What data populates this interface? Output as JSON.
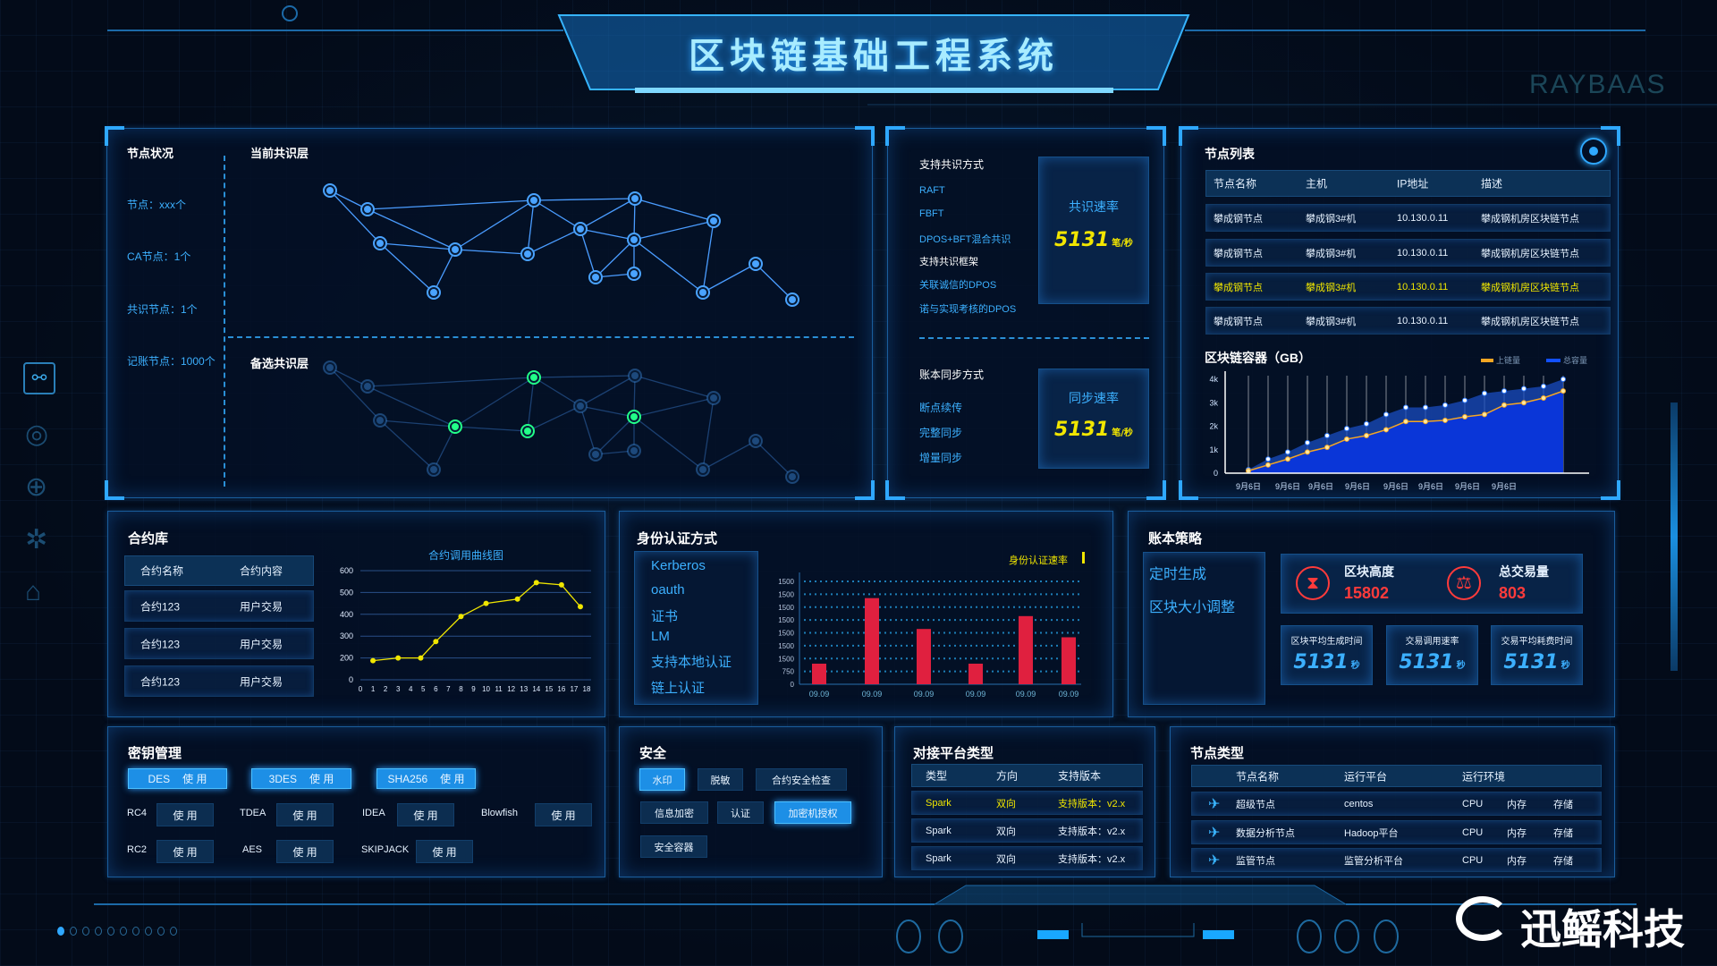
{
  "header": {
    "title": "区块链基础工程系统",
    "watermark_brand": "RAYBAAS",
    "weibo_watermark": "迅鳐科技"
  },
  "node_status": {
    "title": "节点状况",
    "stats": [
      "节点：xxx个",
      "CA节点：1个",
      "共识节点：1个",
      "记账节点：1000个"
    ],
    "current_layer": "当前共识层",
    "candidate_layer": "备选共识层"
  },
  "consensus": {
    "support_title": "支持共识方式",
    "items": [
      {
        "t": "RAFT",
        "c": "blue"
      },
      {
        "t": "FBFT",
        "c": "blue"
      },
      {
        "t": "DPOS+BFT混合共识",
        "c": "blue"
      },
      {
        "t": "支持共识框架",
        "c": "white"
      },
      {
        "t": "关联诚信的DPOS",
        "c": "blue"
      },
      {
        "t": "诺与实现考核的DPOS",
        "c": "blue"
      }
    ],
    "rate_label": "共识速率",
    "rate_value": "5131",
    "rate_unit": "笔/秒",
    "sync_title": "账本同步方式",
    "sync_items": [
      "断点续传",
      "完整同步",
      "增量同步"
    ],
    "sync_rate_label": "同步速率",
    "sync_rate_value": "5131",
    "sync_rate_unit": "笔/秒"
  },
  "node_list": {
    "title": "节点列表",
    "columns": [
      "节点名称",
      "主机",
      "IP地址",
      "描述"
    ],
    "rows": [
      [
        "攀成钢节点",
        "攀成钢3#机",
        "10.130.0.11",
        "攀成钢机房区块链节点"
      ],
      [
        "攀成钢节点",
        "攀成钢3#机",
        "10.130.0.11",
        "攀成钢机房区块链节点"
      ],
      [
        "攀成钢节点",
        "攀成钢3#机",
        "10.130.0.11",
        "攀成钢机房区块链节点"
      ],
      [
        "攀成钢节点",
        "攀成钢3#机",
        "10.130.0.11",
        "攀成钢机房区块链节点"
      ]
    ],
    "highlighted_row": 2
  },
  "contracts": {
    "title": "合约库",
    "columns": [
      "合约名称",
      "合约内容"
    ],
    "rows": [
      [
        "合约123",
        "用户交易"
      ],
      [
        "合约123",
        "用户交易"
      ],
      [
        "合约123",
        "用户交易"
      ]
    ]
  },
  "identity": {
    "title": "身份认证方式",
    "methods": [
      "Kerberos",
      "oauth",
      "证书",
      "LM",
      "支持本地认证",
      "链上认证"
    ]
  },
  "ledger": {
    "title": "账本策略",
    "strategies": [
      "定时生成",
      "区块大小调整"
    ],
    "block_height_label": "区块高度",
    "block_height": "15802",
    "total_tx_label": "总交易量",
    "total_tx": "803",
    "metrics": [
      {
        "label": "区块平均生成时间",
        "value": "5131",
        "unit": "秒"
      },
      {
        "label": "交易调用速率",
        "value": "5131",
        "unit": "秒"
      },
      {
        "label": "交易平均耗费时间",
        "value": "5131",
        "unit": "秒"
      }
    ]
  },
  "keys": {
    "title": "密钥管理",
    "use_label": "使 用",
    "primary": [
      "DES",
      "3DES",
      "SHA256"
    ],
    "others": [
      "RC4",
      "TDEA",
      "IDEA",
      "Blowfish",
      "RC2",
      "AES",
      "SKIPJACK"
    ]
  },
  "security": {
    "title": "安全",
    "buttons": [
      {
        "t": "水印",
        "on": true
      },
      {
        "t": "脱敏",
        "on": false
      },
      {
        "t": "合约安全检查",
        "on": false
      },
      {
        "t": "信息加密",
        "on": false
      },
      {
        "t": "认证",
        "on": false
      },
      {
        "t": "加密机授权",
        "on": true
      },
      {
        "t": "安全容器",
        "on": false
      }
    ]
  },
  "platform": {
    "title": "对接平台类型",
    "columns": [
      "类型",
      "方向",
      "支持版本"
    ],
    "rows": [
      [
        "Spark",
        "双向",
        "支持版本：v2.x"
      ],
      [
        "Spark",
        "双向",
        "支持版本：v2.x"
      ],
      [
        "Spark",
        "双向",
        "支持版本：v2.x"
      ]
    ],
    "highlighted_row": 0
  },
  "node_types": {
    "title": "节点类型",
    "columns": [
      "节点名称",
      "运行平台",
      "运行环境"
    ],
    "rows": [
      [
        "超级节点",
        "centos",
        "CPU",
        "内存",
        "存储"
      ],
      [
        "数据分析节点",
        "Hadoop平台",
        "CPU",
        "内存",
        "存储"
      ],
      [
        "监管节点",
        "监管分析平台",
        "CPU",
        "内存",
        "存储"
      ]
    ]
  },
  "colors": {
    "accent": "#2fa8ff",
    "highlight": "#f0e600",
    "alert": "#ff3b3b",
    "bar": "#e0203f",
    "area": "#0a36d8",
    "line_orange": "#f5a623",
    "node_green": "#22ff88"
  },
  "chart_data": [
    {
      "type": "area",
      "title": "区块链容器（GB）",
      "series": [
        {
          "name": "上链量",
          "values": [
            0.1,
            0.35,
            0.6,
            0.9,
            1.1,
            1.45,
            1.6,
            1.85,
            2.2,
            2.2,
            2.25,
            2.4,
            2.5,
            2.9,
            3.0,
            3.2,
            3.5
          ]
        },
        {
          "name": "总容量",
          "values": [
            0.15,
            0.6,
            0.9,
            1.3,
            1.6,
            1.9,
            2.1,
            2.5,
            2.8,
            2.8,
            2.9,
            3.1,
            3.4,
            3.5,
            3.6,
            3.7,
            4.0
          ]
        }
      ],
      "x_tick_labels": [
        "9月6日",
        "9月6日",
        "9月6日",
        "9月6日",
        "9月6日",
        "9月6日",
        "9月6日",
        "9月6日"
      ],
      "y_tick_labels": [
        "0",
        "1k",
        "2k",
        "3k",
        "4k"
      ],
      "ylim": [
        0,
        4
      ],
      "legend": "top-right"
    },
    {
      "type": "line",
      "title": "合约调用曲线图",
      "x": [
        1,
        3,
        4.8,
        6,
        8,
        10,
        12.5,
        14,
        16,
        17.5
      ],
      "values": [
        175,
        200,
        200,
        275,
        390,
        450,
        470,
        545,
        535,
        435
      ],
      "x_tick_labels": [
        "0",
        "1",
        "2",
        "3",
        "4",
        "5",
        "6",
        "7",
        "8",
        "9",
        "10",
        "11",
        "12",
        "13",
        "14",
        "15",
        "16",
        "17",
        "18"
      ],
      "y_tick_labels": [
        "0",
        "200",
        "300",
        "400",
        "500",
        "600"
      ],
      "grid": true
    },
    {
      "type": "bar",
      "legend_label": "身份认证速率",
      "legend": "top-right",
      "categories": [
        "09.09",
        "09.09",
        "09.09",
        "09.09",
        "09.09",
        "09.09"
      ],
      "values": [
        1200,
        5025,
        3225,
        1200,
        3975,
        2740
      ],
      "y_tick_labels": [
        "0",
        "750",
        "1500",
        "1500",
        "1500",
        "1500",
        "1500",
        "1500",
        "1500"
      ],
      "ylim": [
        0,
        6000
      ]
    }
  ]
}
